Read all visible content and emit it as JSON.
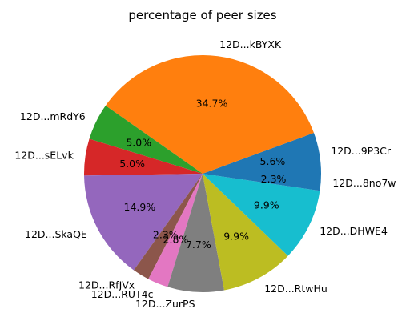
{
  "chart_data": {
    "type": "pie",
    "title": "percentage of peer sizes",
    "slices": [
      {
        "label": "12D...9P3Cr",
        "value": 5.6,
        "pct_text": "5.6%",
        "color": "#1f77b4"
      },
      {
        "label": "12D...kBYXK",
        "value": 34.7,
        "pct_text": "34.7%",
        "color": "#ff7f0e"
      },
      {
        "label": "12D...mRdY6",
        "value": 5.0,
        "pct_text": "5.0%",
        "color": "#2ca02c"
      },
      {
        "label": "12D...sELvk",
        "value": 5.0,
        "pct_text": "5.0%",
        "color": "#d62728"
      },
      {
        "label": "12D...SkaQE",
        "value": 14.9,
        "pct_text": "14.9%",
        "color": "#9467bd"
      },
      {
        "label": "12D...RfJVx",
        "value": 2.3,
        "pct_text": "2.3%",
        "color": "#8c564b"
      },
      {
        "label": "12D...RUT4c",
        "value": 2.8,
        "pct_text": "2.8%",
        "color": "#e377c2"
      },
      {
        "label": "12D...ZurPS",
        "value": 7.7,
        "pct_text": "7.7%",
        "color": "#7f7f7f"
      },
      {
        "label": "12D...RtwHu",
        "value": 9.9,
        "pct_text": "9.9%",
        "color": "#bcbd22"
      },
      {
        "label": "12D...DHWE4",
        "value": 9.9,
        "pct_text": "9.9%",
        "color": "#17becf"
      },
      {
        "label": "12D...8no7w",
        "value": 2.3,
        "pct_text": "2.3%",
        "color": "#1f77b4"
      }
    ],
    "start_angle": 0,
    "direction": "counterclockwise",
    "legend": "none"
  }
}
